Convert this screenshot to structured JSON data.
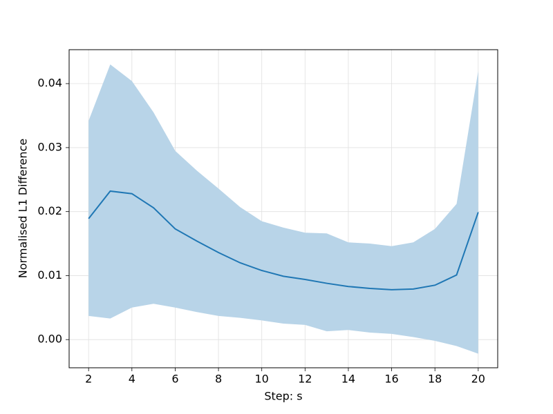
{
  "chart_data": {
    "type": "line",
    "x_label": "Step: s",
    "y_label": "Normalised L1 Difference",
    "x": [
      2,
      3,
      4,
      5,
      6,
      7,
      8,
      9,
      10,
      11,
      12,
      13,
      14,
      15,
      16,
      17,
      18,
      19,
      20
    ],
    "series": [
      {
        "color": "#1f77b4",
        "values": [
          0.0189,
          0.0232,
          0.0228,
          0.0206,
          0.0173,
          0.0154,
          0.0136,
          0.012,
          0.0108,
          0.0099,
          0.0094,
          0.0088,
          0.0083,
          0.008,
          0.0078,
          0.0079,
          0.0085,
          0.0101,
          0.0199
        ],
        "band_color": "#b8d4e8",
        "upper": [
          0.0342,
          0.043,
          0.0404,
          0.0355,
          0.0295,
          0.0264,
          0.0236,
          0.0207,
          0.0185,
          0.0175,
          0.0167,
          0.0166,
          0.0152,
          0.015,
          0.0146,
          0.0152,
          0.0173,
          0.0212,
          0.042
        ],
        "lower": [
          0.0037,
          0.0033,
          0.005,
          0.0056,
          0.005,
          0.0043,
          0.0037,
          0.0034,
          0.003,
          0.0025,
          0.0023,
          0.0013,
          0.0015,
          0.0011,
          0.0009,
          0.0004,
          -0.0002,
          -0.001,
          -0.0022
        ]
      }
    ],
    "xlim": [
      1.1,
      20.9
    ],
    "ylim": [
      -0.0044,
      0.0453
    ],
    "xticks": [
      2,
      4,
      6,
      8,
      10,
      12,
      14,
      16,
      18,
      20
    ],
    "yticks": [
      {
        "value": 0,
        "label": "0.00"
      },
      {
        "value": 0.01,
        "label": "0.01"
      },
      {
        "value": 0.02,
        "label": "0.02"
      },
      {
        "value": 0.03,
        "label": "0.03"
      },
      {
        "value": 0.04,
        "label": "0.04"
      }
    ],
    "grid": true
  }
}
